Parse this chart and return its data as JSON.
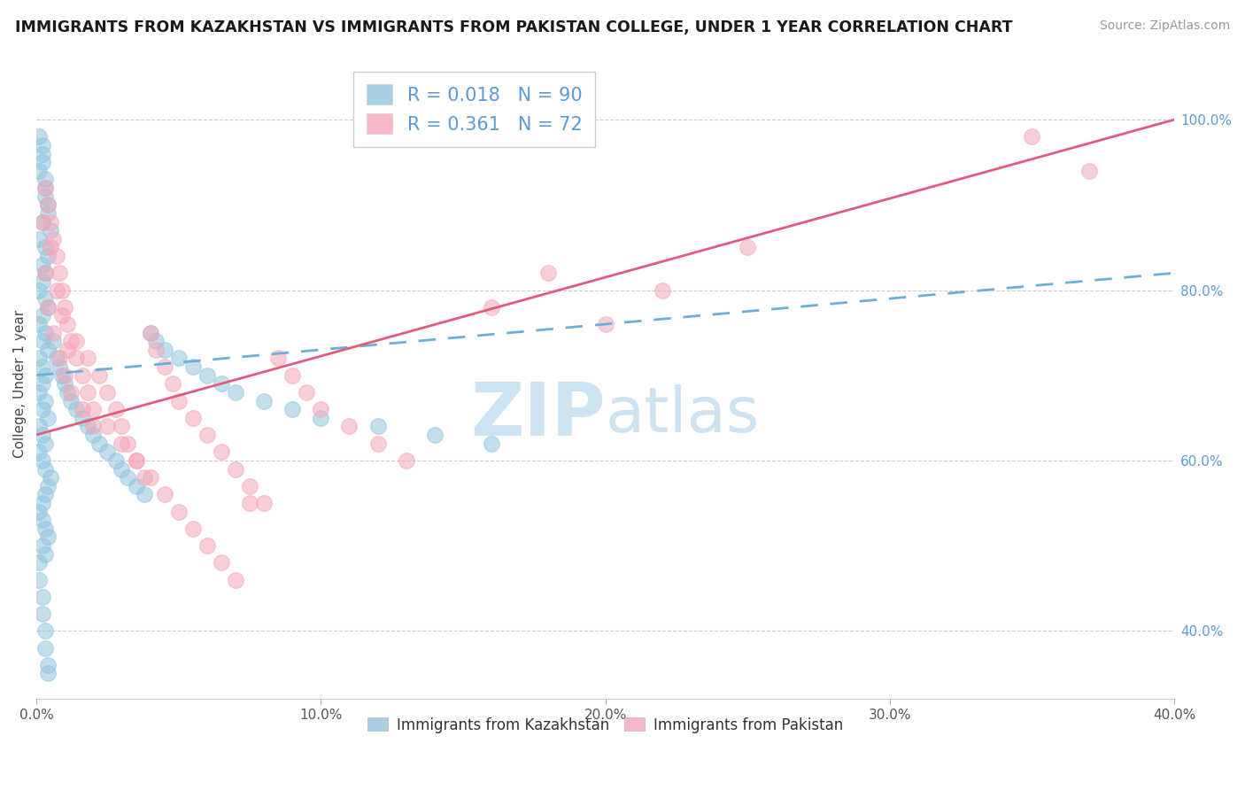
{
  "title": "IMMIGRANTS FROM KAZAKHSTAN VS IMMIGRANTS FROM PAKISTAN COLLEGE, UNDER 1 YEAR CORRELATION CHART",
  "source": "Source: ZipAtlas.com",
  "ylabel": "College, Under 1 year",
  "legend_label1": "R = 0.018   N = 90",
  "legend_label2": "R = 0.361   N = 72",
  "legend_series1": "Immigrants from Kazakhstan",
  "legend_series2": "Immigrants from Pakistan",
  "R1": 0.018,
  "N1": 90,
  "R2": 0.361,
  "N2": 72,
  "color_kaz": "#92c5de",
  "color_pak": "#f4a6b8",
  "color_kaz_line": "#6baed6",
  "color_pak_line": "#e05c7a",
  "xmin": 0.0,
  "xmax": 0.4,
  "ymin": 0.32,
  "ymax": 1.06,
  "right_yticks": [
    0.4,
    0.6,
    0.8,
    1.0
  ],
  "right_yticklabels": [
    "40.0%",
    "60.0%",
    "80.0%",
    "100.0%"
  ],
  "xticks": [
    0.0,
    0.1,
    0.2,
    0.3,
    0.4
  ],
  "xticklabels": [
    "0.0%",
    "10.0%",
    "20.0%",
    "30.0%",
    "40.0%"
  ],
  "kaz_x": [
    0.002,
    0.003,
    0.001,
    0.004,
    0.002,
    0.003,
    0.005,
    0.004,
    0.002,
    0.003,
    0.001,
    0.002,
    0.003,
    0.004,
    0.001,
    0.002,
    0.003,
    0.001,
    0.002,
    0.003,
    0.004,
    0.002,
    0.001,
    0.003,
    0.002,
    0.004,
    0.001,
    0.002,
    0.003,
    0.002,
    0.001,
    0.003,
    0.002,
    0.004,
    0.001,
    0.002,
    0.003,
    0.001,
    0.002,
    0.003,
    0.005,
    0.004,
    0.003,
    0.002,
    0.001,
    0.002,
    0.003,
    0.004,
    0.002,
    0.003,
    0.006,
    0.007,
    0.008,
    0.009,
    0.01,
    0.011,
    0.012,
    0.014,
    0.016,
    0.018,
    0.02,
    0.022,
    0.025,
    0.028,
    0.03,
    0.032,
    0.035,
    0.038,
    0.04,
    0.042,
    0.045,
    0.05,
    0.055,
    0.06,
    0.065,
    0.07,
    0.08,
    0.09,
    0.1,
    0.12,
    0.14,
    0.16,
    0.001,
    0.001,
    0.002,
    0.002,
    0.003,
    0.003,
    0.004,
    0.004
  ],
  "kaz_y": [
    0.96,
    0.92,
    0.94,
    0.9,
    0.88,
    0.93,
    0.87,
    0.89,
    0.95,
    0.91,
    0.98,
    0.97,
    0.85,
    0.84,
    0.86,
    0.83,
    0.82,
    0.8,
    0.81,
    0.79,
    0.78,
    0.77,
    0.76,
    0.75,
    0.74,
    0.73,
    0.72,
    0.71,
    0.7,
    0.69,
    0.68,
    0.67,
    0.66,
    0.65,
    0.64,
    0.63,
    0.62,
    0.61,
    0.6,
    0.59,
    0.58,
    0.57,
    0.56,
    0.55,
    0.54,
    0.53,
    0.52,
    0.51,
    0.5,
    0.49,
    0.74,
    0.72,
    0.71,
    0.7,
    0.69,
    0.68,
    0.67,
    0.66,
    0.65,
    0.64,
    0.63,
    0.62,
    0.61,
    0.6,
    0.59,
    0.58,
    0.57,
    0.56,
    0.75,
    0.74,
    0.73,
    0.72,
    0.71,
    0.7,
    0.69,
    0.68,
    0.67,
    0.66,
    0.65,
    0.64,
    0.63,
    0.62,
    0.48,
    0.46,
    0.44,
    0.42,
    0.4,
    0.38,
    0.36,
    0.35
  ],
  "pak_x": [
    0.002,
    0.003,
    0.004,
    0.005,
    0.006,
    0.007,
    0.008,
    0.009,
    0.01,
    0.011,
    0.012,
    0.014,
    0.016,
    0.018,
    0.02,
    0.022,
    0.025,
    0.028,
    0.03,
    0.032,
    0.035,
    0.038,
    0.04,
    0.042,
    0.045,
    0.048,
    0.05,
    0.055,
    0.06,
    0.065,
    0.07,
    0.075,
    0.08,
    0.085,
    0.09,
    0.095,
    0.1,
    0.11,
    0.12,
    0.13,
    0.003,
    0.004,
    0.005,
    0.006,
    0.007,
    0.008,
    0.009,
    0.01,
    0.011,
    0.012,
    0.014,
    0.016,
    0.018,
    0.02,
    0.025,
    0.03,
    0.035,
    0.04,
    0.045,
    0.05,
    0.055,
    0.06,
    0.065,
    0.07,
    0.075,
    0.16,
    0.18,
    0.2,
    0.22,
    0.25,
    0.35,
    0.37
  ],
  "pak_y": [
    0.88,
    0.82,
    0.78,
    0.85,
    0.75,
    0.8,
    0.72,
    0.77,
    0.7,
    0.73,
    0.68,
    0.74,
    0.66,
    0.72,
    0.64,
    0.7,
    0.68,
    0.66,
    0.64,
    0.62,
    0.6,
    0.58,
    0.75,
    0.73,
    0.71,
    0.69,
    0.67,
    0.65,
    0.63,
    0.61,
    0.59,
    0.57,
    0.55,
    0.72,
    0.7,
    0.68,
    0.66,
    0.64,
    0.62,
    0.6,
    0.92,
    0.9,
    0.88,
    0.86,
    0.84,
    0.82,
    0.8,
    0.78,
    0.76,
    0.74,
    0.72,
    0.7,
    0.68,
    0.66,
    0.64,
    0.62,
    0.6,
    0.58,
    0.56,
    0.54,
    0.52,
    0.5,
    0.48,
    0.46,
    0.55,
    0.78,
    0.82,
    0.76,
    0.8,
    0.85,
    0.98,
    0.94
  ],
  "trend_kaz_y0": 0.7,
  "trend_kaz_y1": 0.82,
  "trend_pak_y0": 0.63,
  "trend_pak_y1": 1.0
}
